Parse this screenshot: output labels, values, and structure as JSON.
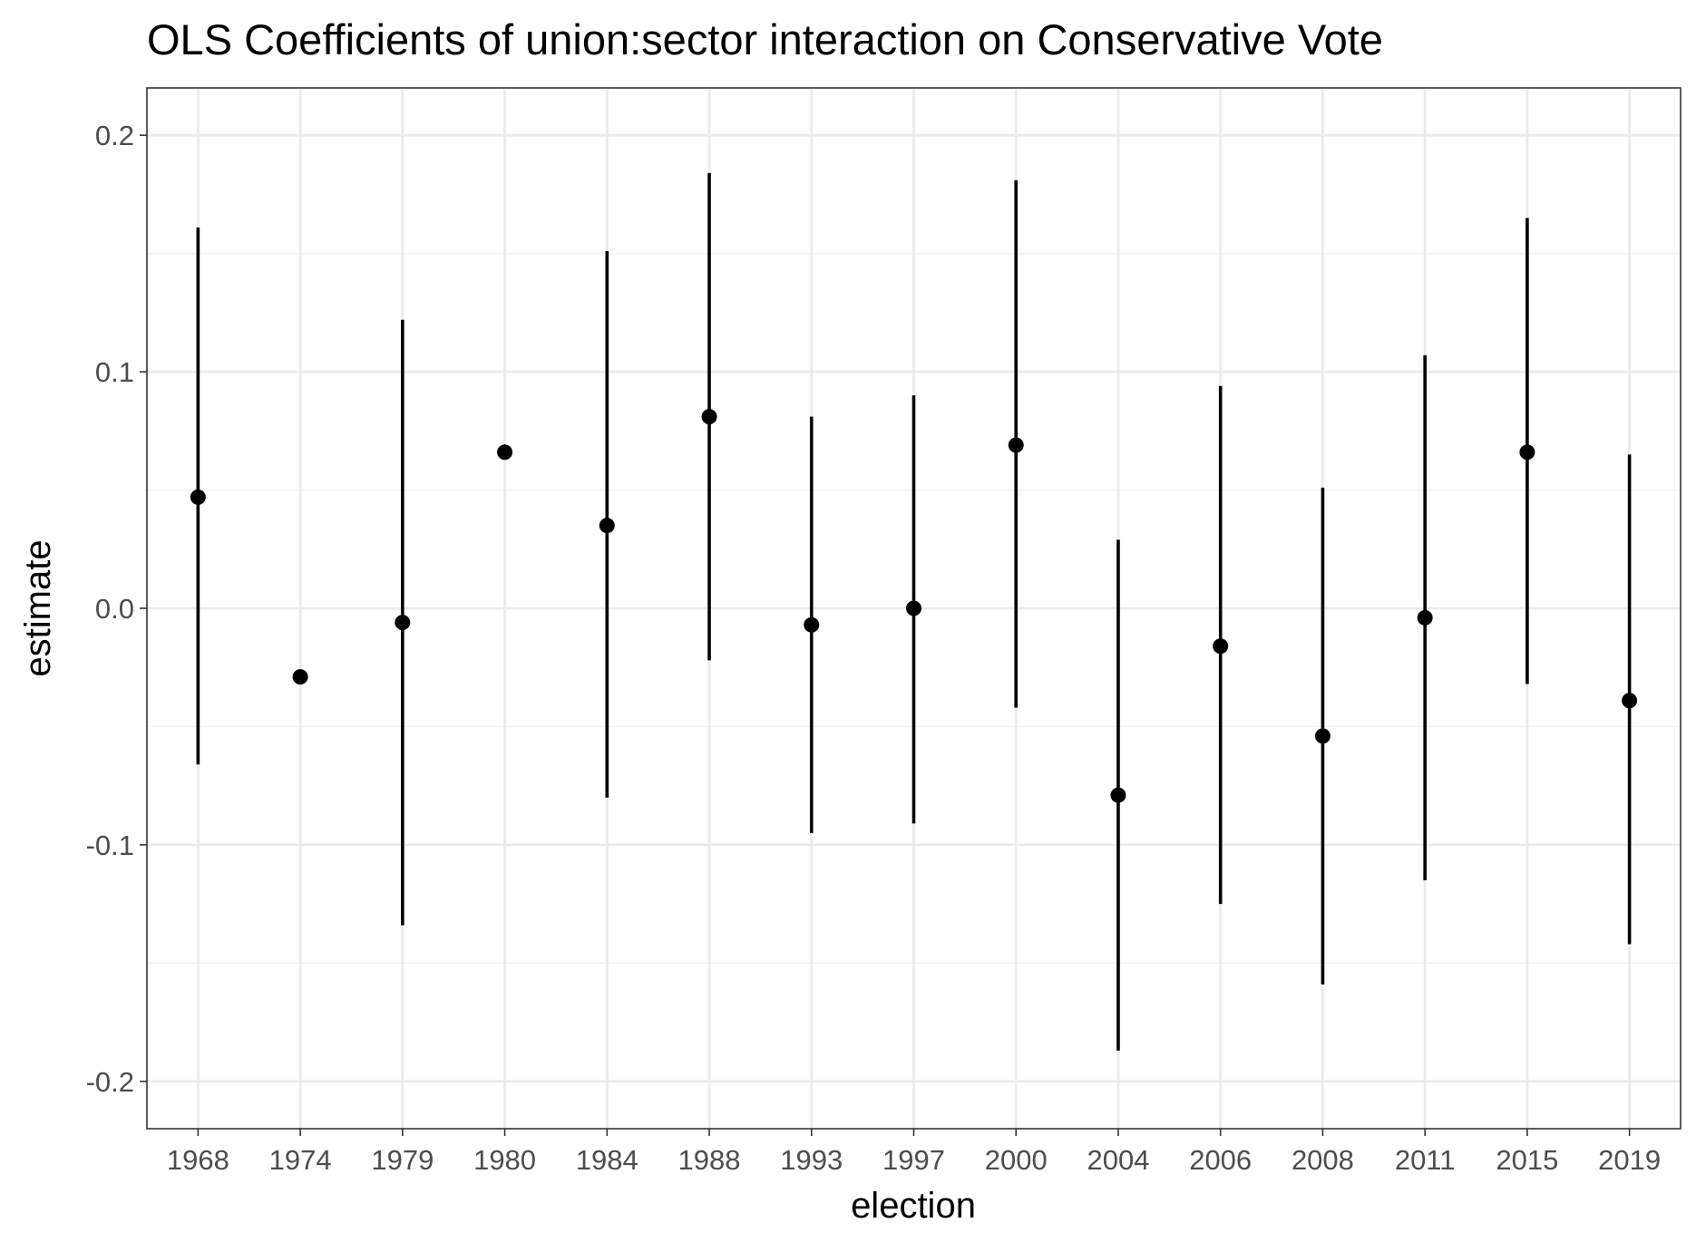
{
  "chart_data": {
    "type": "scatter",
    "subtype": "point-range",
    "title": "OLS Coefficients of union:sector interaction on Conservative Vote",
    "xlabel": "election",
    "ylabel": "estimate",
    "categories": [
      "1968",
      "1974",
      "1979",
      "1980",
      "1984",
      "1988",
      "1993",
      "1997",
      "2000",
      "2004",
      "2006",
      "2008",
      "2011",
      "2015",
      "2019"
    ],
    "y_ticks": [
      0.2,
      0.1,
      0.0,
      -0.1,
      -0.2
    ],
    "y_tick_labels": [
      "0.2",
      "0.1",
      "0.0",
      "-0.1",
      "-0.2"
    ],
    "ylim": [
      -0.22,
      0.22
    ],
    "grid": true,
    "series": [
      {
        "estimates": [
          0.047,
          -0.029,
          -0.006,
          0.066,
          0.035,
          0.081,
          -0.007,
          0.0,
          0.069,
          -0.079,
          -0.016,
          -0.054,
          -0.004,
          0.066,
          -0.039
        ],
        "lower": [
          -0.066,
          null,
          -0.134,
          null,
          -0.08,
          -0.022,
          -0.095,
          -0.091,
          -0.042,
          -0.187,
          -0.125,
          -0.159,
          -0.115,
          -0.032,
          -0.142
        ],
        "upper": [
          0.161,
          null,
          0.122,
          null,
          0.151,
          0.184,
          0.081,
          0.09,
          0.181,
          0.029,
          0.094,
          0.051,
          0.107,
          0.165,
          0.065
        ]
      }
    ],
    "colors": {
      "points": "#000000",
      "bars": "#000000",
      "grid_major": "#ebebeb",
      "grid_minor": "#f2f2f2",
      "panel_border": "#333333",
      "tick_text": "#4d4d4d"
    }
  }
}
